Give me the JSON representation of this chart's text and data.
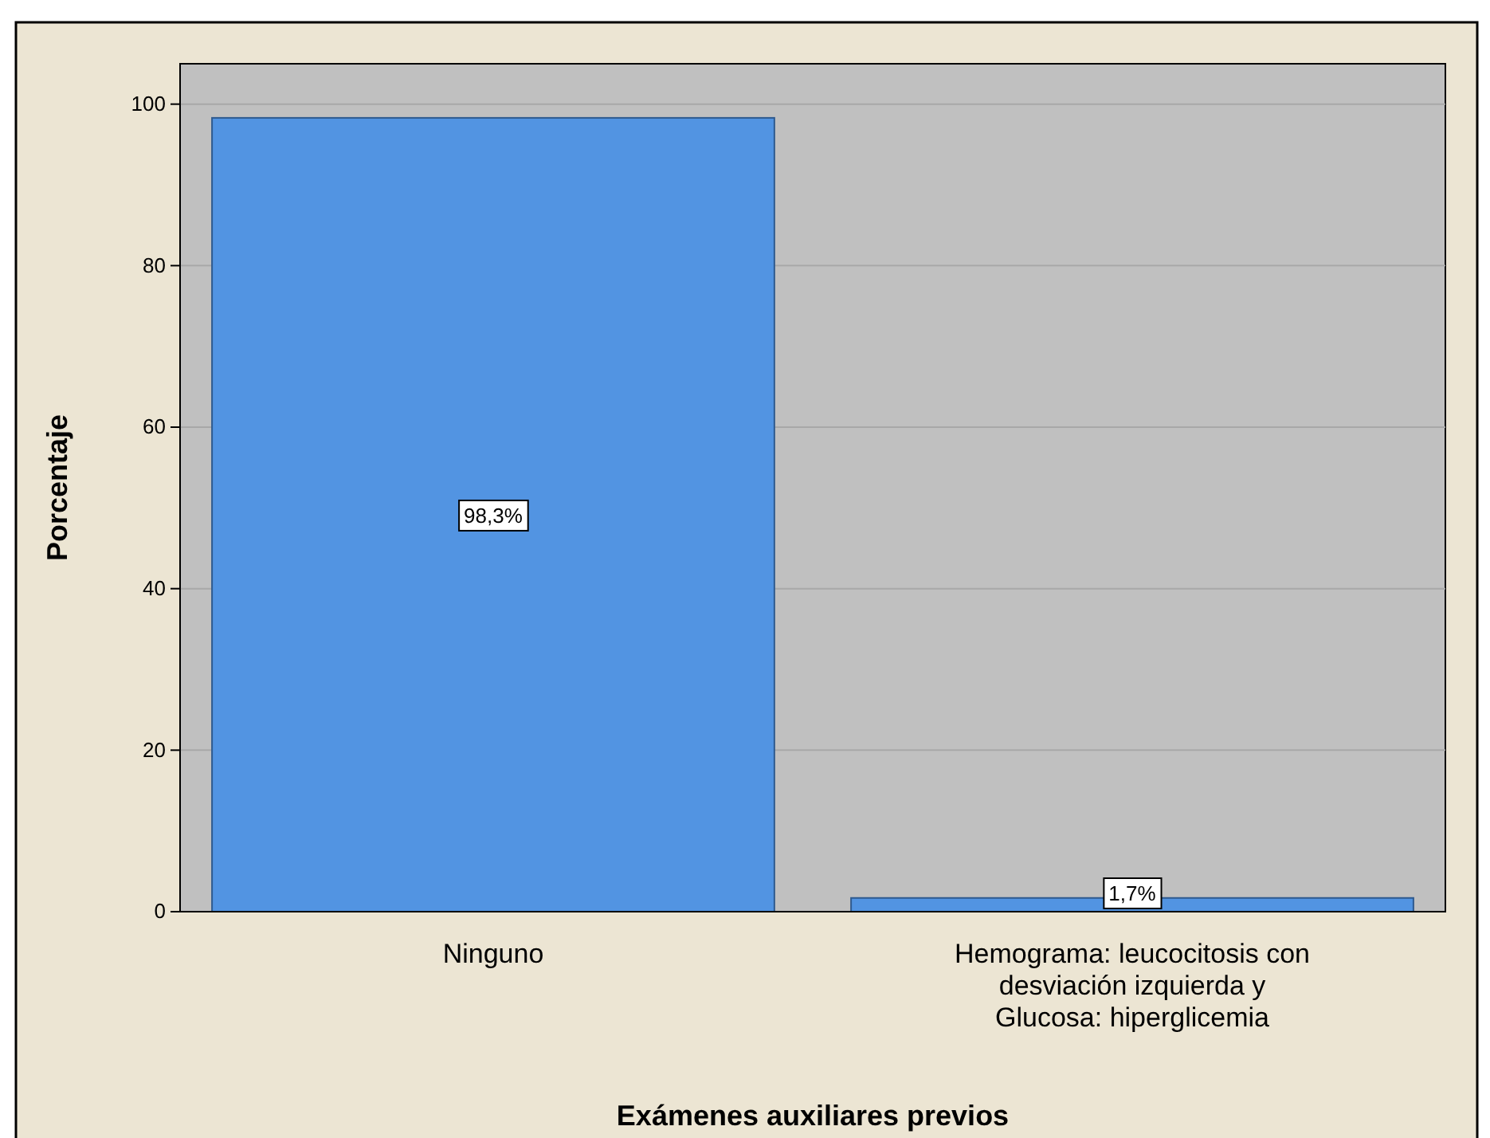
{
  "chart_data": {
    "type": "bar",
    "xlabel": "Exámenes auxiliares previos",
    "ylabel": "Porcentaje",
    "categories": [
      "Ninguno",
      "Hemograma: leucocitosis con desviación izquierda y Glucosa: hiperglicemia"
    ],
    "values": [
      98.3,
      1.7
    ],
    "value_labels": [
      "98,3%",
      "1,7%"
    ],
    "color": "#5294e2",
    "ylim": [
      0,
      105
    ],
    "yticks": [
      0,
      20,
      40,
      60,
      80,
      100
    ],
    "grid": "y"
  }
}
